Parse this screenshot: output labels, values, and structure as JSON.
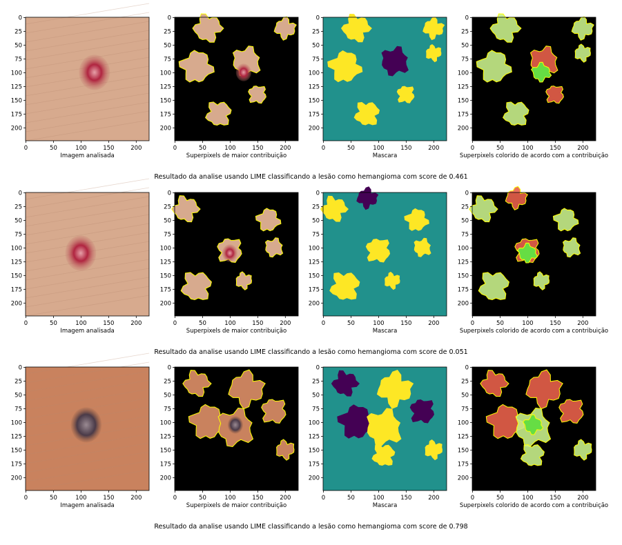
{
  "panel_titles": [
    "Imagem analisada",
    "Superpixels de maior contribuição",
    "Mascara",
    "Superpixels colorido de acordo com a contribuição"
  ],
  "axis": {
    "x_ticks": [
      "0",
      "50",
      "100",
      "150",
      "200"
    ],
    "y_ticks": [
      "0",
      "25",
      "50",
      "75",
      "100",
      "125",
      "150",
      "175",
      "200"
    ]
  },
  "colors": {
    "skin": "#d7aa8e",
    "skin_dark": "#c9825e",
    "mask_bg": "#21918c",
    "mask_yellow": "#fde725",
    "mask_purple": "#440154",
    "positive": "#66dd44",
    "negative": "#e8604a",
    "boundary": "#ffff00"
  },
  "rows": [
    {
      "caption": "Resultado da analise usando LIME classificando a lesão como hemangioma com score de 0.461",
      "lesion": "red"
    },
    {
      "caption": "Resultado da analise usando LIME classificando a lesão como hemangioma com score de 0.051",
      "lesion": "red"
    },
    {
      "caption": "Resultado da analise usando LIME classificando a lesão como hemangioma com score de 0.798",
      "lesion": "dark"
    }
  ]
}
